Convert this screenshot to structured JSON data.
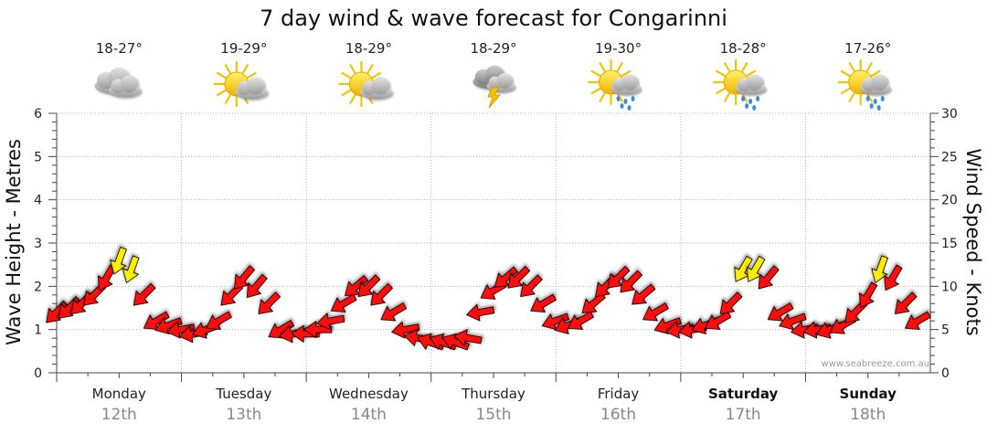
{
  "chart_data": {
    "type": "line",
    "title": "7 day wind & wave forecast for Congarinni",
    "ylabel_left": "Wave Height - Metres",
    "ylabel_right": "Wind Speed - Knots",
    "ylim_left": [
      0,
      6
    ],
    "ylim_right": [
      0,
      30
    ],
    "yticks_left": [
      "0",
      "1",
      "2",
      "3",
      "4",
      "5",
      "6"
    ],
    "yticks_right": [
      "0",
      "5",
      "10",
      "15",
      "20",
      "25",
      "30"
    ],
    "grid": true,
    "credit": "www.seabreeze.com.au",
    "days": [
      {
        "day": "Monday",
        "date": "12th",
        "temp": "18-27°",
        "icon": "cloudy-icon",
        "bold": false
      },
      {
        "day": "Tuesday",
        "date": "13th",
        "temp": "19-29°",
        "icon": "sun-cloud-icon",
        "bold": false
      },
      {
        "day": "Wednesday",
        "date": "14th",
        "temp": "18-29°",
        "icon": "sun-cloud-icon",
        "bold": false
      },
      {
        "day": "Thursday",
        "date": "15th",
        "temp": "18-29°",
        "icon": "thunderstorm-icon",
        "bold": false
      },
      {
        "day": "Friday",
        "date": "16th",
        "temp": "19-30°",
        "icon": "sun-rain-icon",
        "bold": false
      },
      {
        "day": "Saturday",
        "date": "17th",
        "temp": "18-28°",
        "icon": "sun-rain-icon",
        "bold": true
      },
      {
        "day": "Sunday",
        "date": "18th",
        "temp": "17-26°",
        "icon": "sun-rain-icon",
        "bold": true
      }
    ],
    "series": [
      {
        "name": "Wind Speed - Knots",
        "x_days": [
          0.0,
          0.1,
          0.2,
          0.3,
          0.4,
          0.5,
          0.6,
          0.7,
          0.8,
          0.9,
          1.0,
          1.1,
          1.2,
          1.3,
          1.4,
          1.5,
          1.6,
          1.7,
          1.8,
          1.9,
          2.0,
          2.1,
          2.2,
          2.3,
          2.4,
          2.5,
          2.6,
          2.7,
          2.8,
          2.9,
          3.0,
          3.1,
          3.2,
          3.3,
          3.4,
          3.5,
          3.6,
          3.7,
          3.8,
          3.9,
          4.0,
          4.1,
          4.2,
          4.3,
          4.4,
          4.5,
          4.6,
          4.7,
          4.8,
          4.9,
          5.0,
          5.1,
          5.2,
          5.3,
          5.4,
          5.5,
          5.6,
          5.7,
          5.8,
          5.9,
          6.0,
          6.1,
          6.2,
          6.3,
          6.4,
          6.5,
          6.6,
          6.7,
          6.8,
          6.9
        ],
        "values": [
          7,
          7.5,
          8,
          9,
          11,
          13,
          12,
          9,
          6,
          5.5,
          5,
          4.5,
          5,
          6,
          9,
          11,
          10,
          8,
          5,
          4.5,
          4.5,
          5,
          6,
          8,
          10,
          10,
          9,
          7,
          5,
          4,
          3.5,
          3.5,
          3.5,
          4,
          7,
          9.5,
          11,
          11,
          10,
          8,
          6,
          5.5,
          6,
          8,
          10,
          11,
          10.5,
          9,
          7,
          5.5,
          5,
          5,
          5.5,
          6,
          8,
          12,
          12,
          11,
          7,
          6,
          5,
          5,
          5,
          5.5,
          7,
          9,
          12,
          11,
          8,
          6
        ],
        "direction_deg": [
          45,
          45,
          45,
          45,
          30,
          20,
          20,
          45,
          60,
          70,
          80,
          80,
          70,
          60,
          45,
          40,
          40,
          45,
          60,
          80,
          90,
          90,
          80,
          60,
          50,
          45,
          45,
          60,
          80,
          100,
          110,
          110,
          110,
          100,
          80,
          60,
          50,
          45,
          45,
          60,
          70,
          70,
          60,
          50,
          45,
          45,
          45,
          50,
          60,
          70,
          80,
          80,
          70,
          60,
          45,
          30,
          30,
          40,
          60,
          70,
          80,
          80,
          70,
          60,
          45,
          30,
          20,
          30,
          45,
          60
        ]
      }
    ]
  }
}
